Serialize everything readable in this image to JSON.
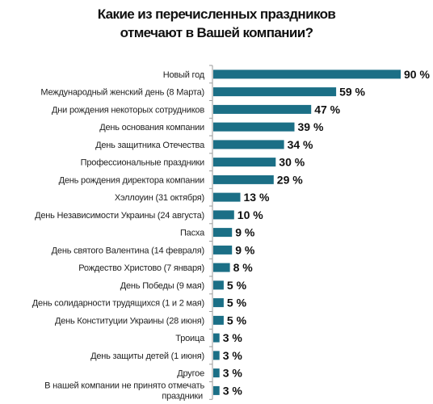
{
  "title_line1": "Какие из перечисленных праздников",
  "title_line2": "отмечают в Вашей компании?",
  "colors": {
    "bar": "#1b6f86",
    "axis": "#9a9a9a",
    "text": "#222222"
  },
  "chart_data": {
    "type": "bar",
    "orientation": "horizontal",
    "title": "Какие из перечисленных праздников отмечают в Вашей компании?",
    "categories": [
      "Новый год",
      "Международный женский день (8 Марта)",
      "Дни рождения некоторых сотрудников",
      "День основания компании",
      "День защитника Отечества",
      "Профессиональные праздники",
      "День рождения директора компании",
      "Хэллоуин (31 октября)",
      "День Независимости Украины (24 августа)",
      "Пасха",
      "День святого Валентина (14 февраля)",
      "Рождество Христово (7 января)",
      "День Победы (9 мая)",
      "День солидарности трудящихся (1 и 2 мая)",
      "День Конституции Украины (28 июня)",
      "Троица",
      "День защиты детей (1 июня)",
      "Другое",
      "В нашей компании не принято отмечать праздники"
    ],
    "values": [
      90,
      59,
      47,
      39,
      34,
      30,
      29,
      13,
      10,
      9,
      9,
      8,
      5,
      5,
      5,
      3,
      3,
      3,
      3
    ],
    "value_labels": [
      "90 %",
      "59 %",
      "47 %",
      "39 %",
      "34 %",
      "30 %",
      "29 %",
      "13 %",
      "10 %",
      "9 %",
      "9 %",
      "8 %",
      "5 %",
      "5 %",
      "5 %",
      "3 %",
      "3 %",
      "3 %",
      "3 %"
    ],
    "xlim": [
      0,
      90
    ],
    "grid": false,
    "legend": false
  }
}
